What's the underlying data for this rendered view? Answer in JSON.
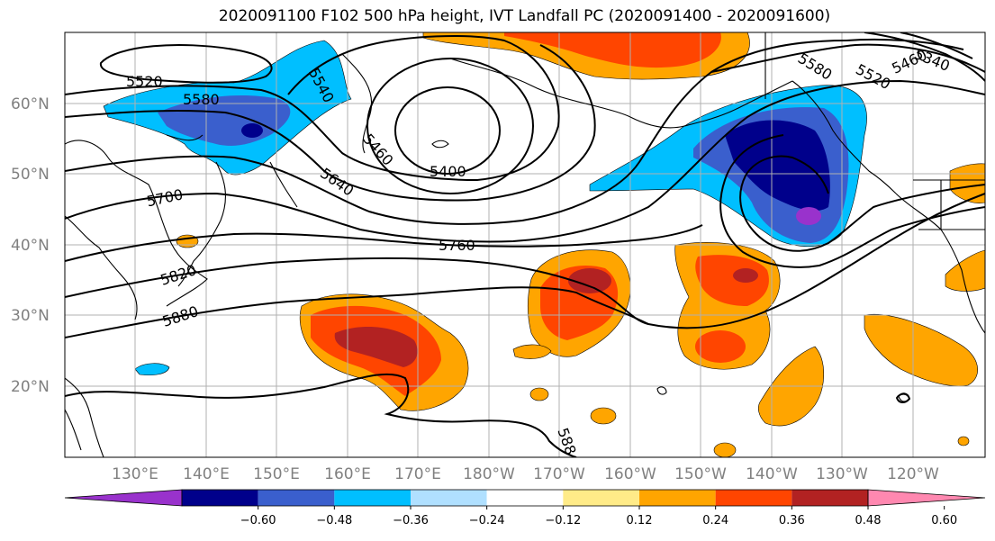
{
  "title": "2020091100 F102 500 hPa height, IVT Landfall PC (2020091400 - 2020091600)",
  "lat_labels": [
    "60°N",
    "50°N",
    "40°N",
    "30°N",
    "20°N"
  ],
  "lon_labels": [
    "130°E",
    "140°E",
    "150°E",
    "160°E",
    "170°E",
    "180°W",
    "170°W",
    "160°W",
    "150°W",
    "140°W",
    "130°W",
    "120°W"
  ],
  "contour_labels": [
    "5520",
    "5580",
    "5540",
    "5460",
    "5400",
    "5640",
    "5700",
    "5760",
    "5820",
    "5880",
    "5580",
    "5520",
    "5460",
    "5400",
    "5340",
    "588"
  ],
  "colorbar": {
    "colors": [
      "#9932cc",
      "#00008b",
      "#3a5fcd",
      "#00bfff",
      "#b0e0ff",
      "#ffffff",
      "#ffeb88",
      "#ffa500",
      "#ff4500",
      "#b22222",
      "#ff88b0"
    ],
    "tick_labels": [
      "−0.60",
      "−0.48",
      "−0.36",
      "−0.24",
      "−0.12",
      "0.12",
      "0.24",
      "0.36",
      "0.48",
      "0.60"
    ]
  }
}
